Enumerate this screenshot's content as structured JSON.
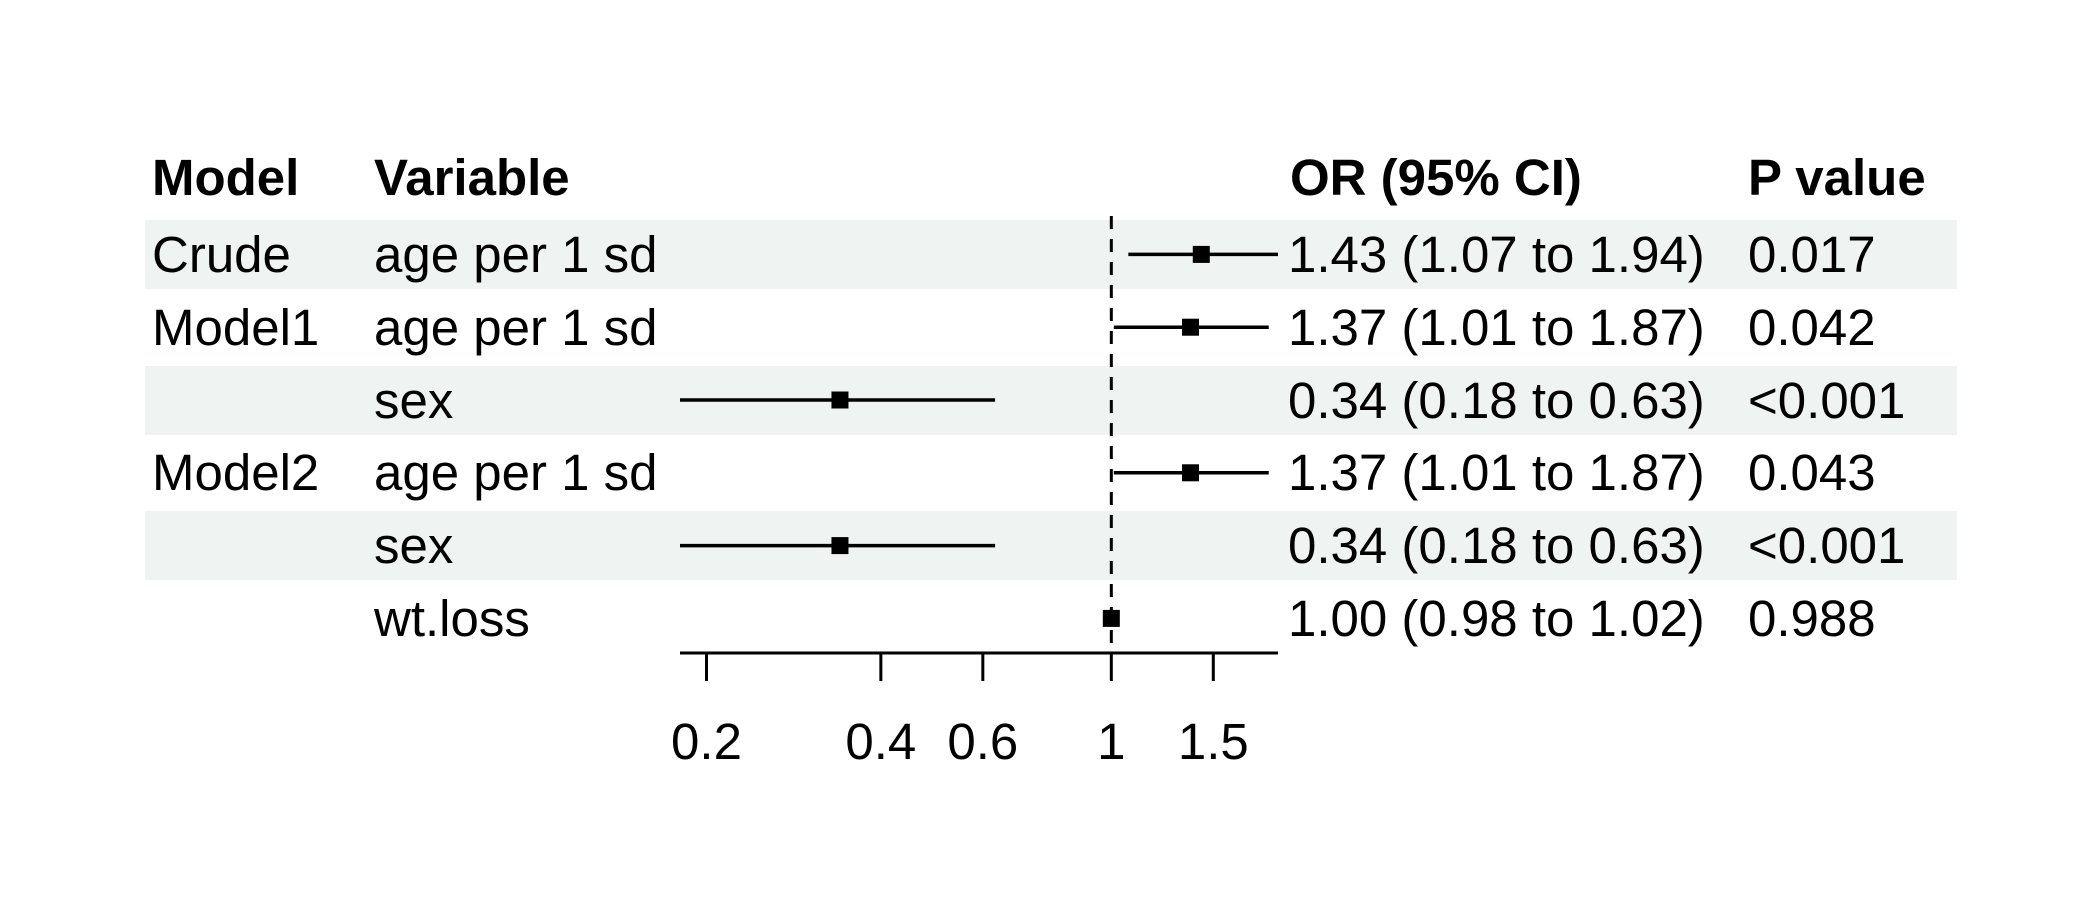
{
  "table": {
    "headers": {
      "model": "Model",
      "variable": "Variable",
      "or_ci": "OR (95% CI)",
      "p_value": "P value"
    },
    "rows": [
      {
        "model": "Crude",
        "variable": "age per 1 sd",
        "or_ci": "1.43 (1.07 to 1.94)",
        "p_value": "0.017",
        "shaded": true
      },
      {
        "model": "Model1",
        "variable": "age per 1 sd",
        "or_ci": "1.37 (1.01 to 1.87)",
        "p_value": "0.042",
        "shaded": false
      },
      {
        "model": "",
        "variable": "sex",
        "or_ci": "0.34 (0.18 to 0.63)",
        "p_value": "<0.001",
        "shaded": true
      },
      {
        "model": "Model2",
        "variable": "age per 1 sd",
        "or_ci": "1.37 (1.01 to 1.87)",
        "p_value": "0.043",
        "shaded": false
      },
      {
        "model": "",
        "variable": "sex",
        "or_ci": "0.34 (0.18 to 0.63)",
        "p_value": "<0.001",
        "shaded": true
      },
      {
        "model": "",
        "variable": "wt.loss",
        "or_ci": "1.00 (0.98 to 1.02)",
        "p_value": "0.988",
        "shaded": false
      }
    ]
  },
  "chart_data": {
    "type": "scatter",
    "variant": "forest-plot",
    "title": "",
    "xlabel": "",
    "ylabel": "",
    "x_scale": "log10",
    "x_domain": [
      0.18,
      1.94
    ],
    "x_ticks": [
      0.2,
      0.4,
      0.6,
      1,
      1.5
    ],
    "reference_line": 1,
    "grid": false,
    "legend": false,
    "marker": "filled-square",
    "series": [
      {
        "name": "Crude — age per 1 sd",
        "est": 1.43,
        "lo": 1.07,
        "hi": 1.94
      },
      {
        "name": "Model1 — age per 1 sd",
        "est": 1.37,
        "lo": 1.01,
        "hi": 1.87
      },
      {
        "name": "Model1 — sex",
        "est": 0.34,
        "lo": 0.18,
        "hi": 0.63
      },
      {
        "name": "Model2 — age per 1 sd",
        "est": 1.37,
        "lo": 1.01,
        "hi": 1.87
      },
      {
        "name": "Model2 — sex",
        "est": 0.34,
        "lo": 0.18,
        "hi": 0.63
      },
      {
        "name": "Model2 — wt.loss",
        "est": 1.0,
        "lo": 0.98,
        "hi": 1.02
      }
    ]
  },
  "colors": {
    "stripe": "#eff3f2",
    "ink": "#000000",
    "background": "#ffffff"
  }
}
